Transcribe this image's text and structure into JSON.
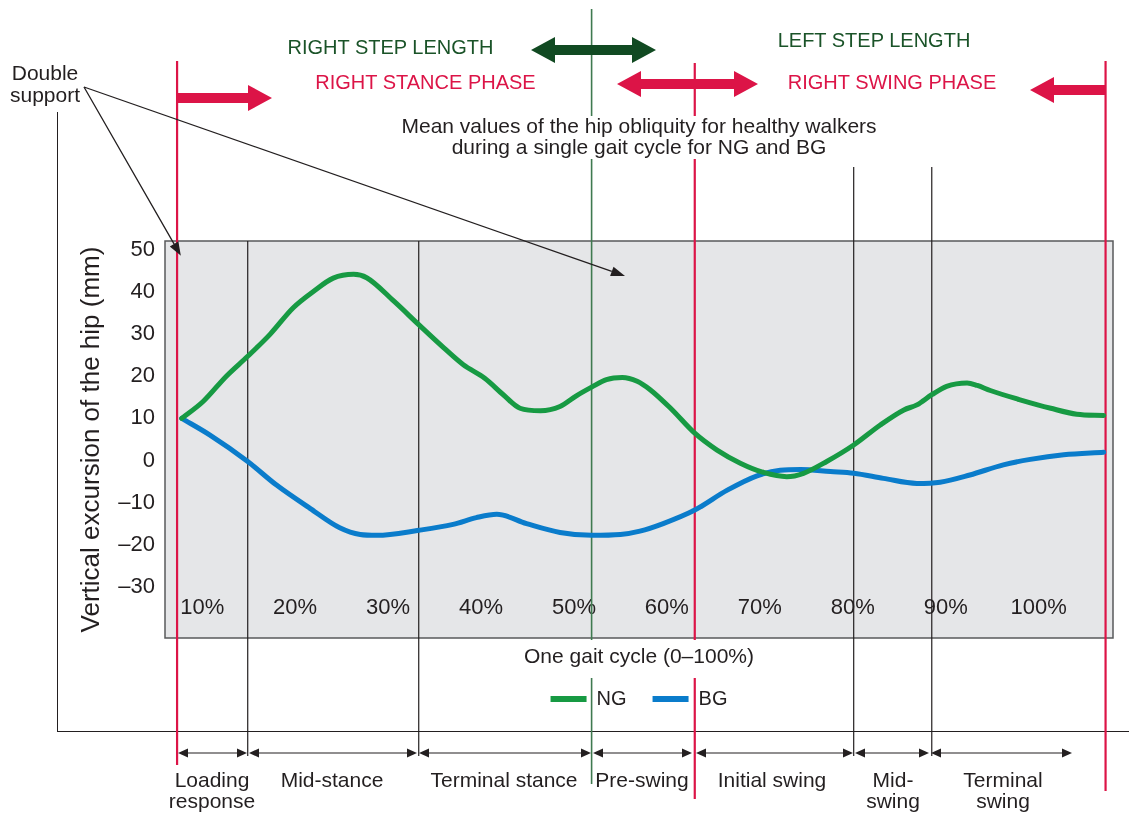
{
  "chart_data": {
    "type": "line",
    "title": "Mean values of the hip obliquity for healthy walkers during a single gait cycle for NG and BG",
    "xlabel": "One gait cycle (0–100%)",
    "ylabel": "Vertical excursion of the hip (mm)",
    "series": [
      {
        "name": "NG",
        "color": "#179a43",
        "x": [
          7.8,
          10.1,
          12.6,
          14.9,
          17.3,
          19.8,
          22.0,
          24.1,
          26.3,
          27.7,
          30.6,
          33.3,
          36.0,
          38.1,
          40.4,
          42.4,
          44.2,
          46.4,
          48.5,
          50.3,
          51.9,
          53.5,
          55.2,
          56.8,
          58.2,
          60.4,
          63.0,
          65.4,
          67.9,
          70.4,
          72.9,
          74.7,
          77.2,
          80.1,
          83.0,
          85.5,
          86.9,
          88.5,
          90.1,
          92.3,
          93.4,
          94.8,
          98.0,
          101.3,
          104.1,
          107.0
        ],
        "values": [
          10.0,
          14.0,
          20.0,
          24.7,
          29.9,
          36.2,
          40.1,
          43.2,
          44.1,
          43.3,
          37.8,
          32.2,
          26.7,
          22.7,
          19.5,
          15.6,
          12.4,
          11.8,
          12.8,
          15.4,
          17.4,
          19.2,
          19.7,
          18.8,
          16.8,
          12.4,
          6.5,
          2.5,
          -0.6,
          -2.8,
          -3.8,
          -3.0,
          -0.2,
          3.7,
          8.5,
          12.0,
          13.2,
          15.6,
          17.6,
          18.4,
          17.8,
          16.6,
          14.4,
          12.4,
          11.0,
          10.7
        ]
      },
      {
        "name": "BG",
        "color": "#0a7ccb",
        "x": [
          7.8,
          10.8,
          14.9,
          18.0,
          21.6,
          24.8,
          27.0,
          28.8,
          33.3,
          37.0,
          39.5,
          41.7,
          44.9,
          48.5,
          51.9,
          55.0,
          57.1,
          59.6,
          63.0,
          66.5,
          69.7,
          72.2,
          74.4,
          77.6,
          80.1,
          83.3,
          86.9,
          89.4,
          92.6,
          96.2,
          99.1,
          102.7,
          107.0
        ],
        "values": [
          10.0,
          6.1,
          -0.2,
          -5.8,
          -11.3,
          -15.9,
          -17.5,
          -17.7,
          -16.5,
          -15.1,
          -13.5,
          -12.7,
          -14.9,
          -17.0,
          -17.7,
          -17.5,
          -16.7,
          -14.9,
          -11.7,
          -7.0,
          -3.6,
          -2.3,
          -2.1,
          -2.6,
          -3.0,
          -4.2,
          -5.4,
          -5.1,
          -3.4,
          -1.0,
          0.3,
          1.4,
          2.0
        ]
      }
    ],
    "xlim": [
      6,
      108
    ],
    "xticks": [
      {
        "value": 10,
        "label": "10%"
      },
      {
        "value": 20,
        "label": "20%"
      },
      {
        "value": 30,
        "label": "30%"
      },
      {
        "value": 40,
        "label": "40%"
      },
      {
        "value": 50,
        "label": "50%"
      },
      {
        "value": 60,
        "label": "60%"
      },
      {
        "value": 70,
        "label": "70%"
      },
      {
        "value": 80,
        "label": "80%"
      },
      {
        "value": 90,
        "label": "90%"
      },
      {
        "value": 100,
        "label": "100%"
      }
    ],
    "ylim": [
      -42,
      52
    ],
    "yticks": [
      50,
      40,
      30,
      20,
      10,
      0,
      {
        "value": -10,
        "label": "–10"
      },
      {
        "value": -20,
        "label": "–20"
      },
      {
        "value": -30,
        "label": "–30"
      }
    ],
    "ref_lines": [
      {
        "axis": "x",
        "value": 7.3,
        "color": "#dc1447"
      },
      {
        "axis": "x",
        "value": 14.9,
        "color": "#231f20"
      },
      {
        "axis": "x",
        "value": 33.3,
        "color": "#231f20"
      },
      {
        "axis": "x",
        "value": 51.9,
        "color": "#3f7a50"
      },
      {
        "axis": "x",
        "value": 63.0,
        "color": "#dc1447"
      },
      {
        "axis": "x",
        "value": 80.1,
        "color": "#231f20"
      },
      {
        "axis": "x",
        "value": 88.5,
        "color": "#231f20"
      },
      {
        "axis": "x",
        "value": 107.2,
        "color": "#dc1447"
      }
    ],
    "annotations": [
      {
        "text": "Double support",
        "x": 7.6,
        "y": 48.9
      },
      "Loading response",
      "Mid-stance",
      "Terminal stance",
      "Pre-swing",
      "Initial swing",
      "Mid-swing",
      "Terminal swing",
      "RIGHT STANCE PHASE",
      "RIGHT SWING PHASE",
      "RIGHT STEP LENGTH",
      "LEFT STEP LENGTH"
    ],
    "legend": "bottom"
  }
}
